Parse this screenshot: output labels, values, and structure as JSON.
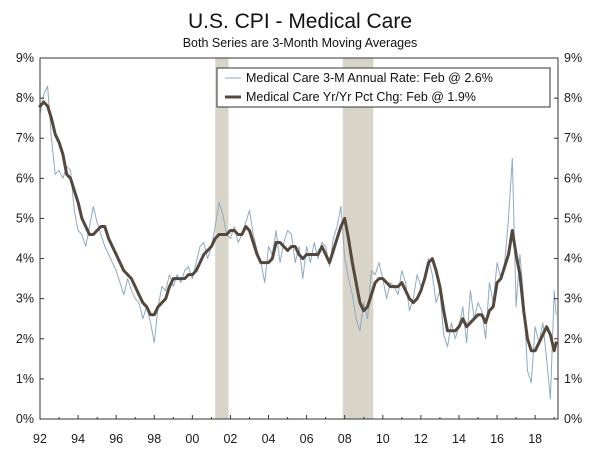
{
  "chart_data": {
    "type": "line",
    "title": "U.S. CPI - Medical Care",
    "subtitle": "Both Series are 3-Month Moving Averages",
    "xlabel": "",
    "ylabel": "",
    "xlim": [
      1992.0,
      2019.2
    ],
    "ylim": [
      0,
      9
    ],
    "x_tick_values": [
      1992,
      1994,
      1996,
      1998,
      2000,
      2002,
      2004,
      2006,
      2008,
      2010,
      2012,
      2014,
      2016,
      2018
    ],
    "x_tick_labels": [
      "92",
      "94",
      "96",
      "98",
      "00",
      "02",
      "04",
      "06",
      "08",
      "10",
      "12",
      "14",
      "16",
      "18"
    ],
    "y_tick_values": [
      0,
      1,
      2,
      3,
      4,
      5,
      6,
      7,
      8,
      9
    ],
    "y_tick_labels": [
      "0%",
      "1%",
      "2%",
      "3%",
      "4%",
      "5%",
      "6%",
      "7%",
      "8%",
      "9%"
    ],
    "recessions": [
      [
        2001.2,
        2001.9
      ],
      [
        2007.9,
        2009.5
      ]
    ],
    "series": [
      {
        "name": "Medical Care 3-M Annual Rate: Feb @ 2.6%",
        "color": "#8fa9c4",
        "width": 1,
        "x": [
          1992.0,
          1992.2,
          1992.4,
          1992.6,
          1992.8,
          1993.0,
          1993.2,
          1993.4,
          1993.6,
          1993.8,
          1994.0,
          1994.2,
          1994.4,
          1994.6,
          1994.8,
          1995.0,
          1995.2,
          1995.4,
          1995.6,
          1995.8,
          1996.0,
          1996.2,
          1996.4,
          1996.6,
          1996.8,
          1997.0,
          1997.2,
          1997.4,
          1997.6,
          1997.8,
          1998.0,
          1998.2,
          1998.4,
          1998.6,
          1998.8,
          1999.0,
          1999.2,
          1999.4,
          1999.6,
          1999.8,
          2000.0,
          2000.2,
          2000.4,
          2000.6,
          2000.8,
          2001.0,
          2001.2,
          2001.4,
          2001.6,
          2001.8,
          2002.0,
          2002.2,
          2002.4,
          2002.6,
          2002.8,
          2003.0,
          2003.2,
          2003.4,
          2003.6,
          2003.8,
          2004.0,
          2004.2,
          2004.4,
          2004.6,
          2004.8,
          2005.0,
          2005.2,
          2005.4,
          2005.6,
          2005.8,
          2006.0,
          2006.2,
          2006.4,
          2006.6,
          2006.8,
          2007.0,
          2007.2,
          2007.4,
          2007.6,
          2007.8,
          2008.0,
          2008.2,
          2008.4,
          2008.6,
          2008.8,
          2009.0,
          2009.2,
          2009.4,
          2009.6,
          2009.8,
          2010.0,
          2010.2,
          2010.4,
          2010.6,
          2010.8,
          2011.0,
          2011.2,
          2011.4,
          2011.6,
          2011.8,
          2012.0,
          2012.2,
          2012.4,
          2012.6,
          2012.8,
          2013.0,
          2013.2,
          2013.4,
          2013.6,
          2013.8,
          2014.0,
          2014.2,
          2014.4,
          2014.6,
          2014.8,
          2015.0,
          2015.2,
          2015.4,
          2015.6,
          2015.8,
          2016.0,
          2016.2,
          2016.4,
          2016.6,
          2016.8,
          2017.0,
          2017.2,
          2017.4,
          2017.6,
          2017.8,
          2018.0,
          2018.2,
          2018.4,
          2018.6,
          2018.8,
          2019.0,
          2019.1
        ],
        "values": [
          7.6,
          8.1,
          8.3,
          7.0,
          6.1,
          6.2,
          6.0,
          6.3,
          6.2,
          5.2,
          4.7,
          4.6,
          4.3,
          4.8,
          5.3,
          4.9,
          4.6,
          4.3,
          4.1,
          3.9,
          3.7,
          3.4,
          3.1,
          3.5,
          3.2,
          3.0,
          2.9,
          2.5,
          2.8,
          2.4,
          1.9,
          2.8,
          3.3,
          3.2,
          3.6,
          3.3,
          3.6,
          3.4,
          3.7,
          3.8,
          3.5,
          3.9,
          4.3,
          4.4,
          4.0,
          4.3,
          4.8,
          5.4,
          5.1,
          4.6,
          4.5,
          4.8,
          4.4,
          4.6,
          4.9,
          5.2,
          4.6,
          4.2,
          3.9,
          3.4,
          4.3,
          4.1,
          4.7,
          3.9,
          4.4,
          4.7,
          4.6,
          3.9,
          4.3,
          3.5,
          4.3,
          3.9,
          4.4,
          4.0,
          4.4,
          4.3,
          3.8,
          4.5,
          4.8,
          5.3,
          4.0,
          3.5,
          3.1,
          2.5,
          2.2,
          2.9,
          2.5,
          3.7,
          3.6,
          3.9,
          3.5,
          3.0,
          3.4,
          3.3,
          3.1,
          3.7,
          3.4,
          2.7,
          3.0,
          3.6,
          3.3,
          3.5,
          4.0,
          3.6,
          2.9,
          3.2,
          2.1,
          1.8,
          2.4,
          2.0,
          2.3,
          2.8,
          1.9,
          3.2,
          2.5,
          2.9,
          2.7,
          2.0,
          3.4,
          2.9,
          3.9,
          3.5,
          3.9,
          5.0,
          6.5,
          2.8,
          4.1,
          3.0,
          1.2,
          0.9,
          2.3,
          1.9,
          2.4,
          1.5,
          0.5,
          3.2,
          2.6
        ]
      },
      {
        "name": "Medical Care Yr/Yr Pct Chg: Feb @ 1.9%",
        "color": "#54483d",
        "width": 3,
        "x": [
          1992.0,
          1992.2,
          1992.4,
          1992.6,
          1992.8,
          1993.0,
          1993.2,
          1993.4,
          1993.6,
          1993.8,
          1994.0,
          1994.2,
          1994.4,
          1994.6,
          1994.8,
          1995.0,
          1995.2,
          1995.4,
          1995.6,
          1995.8,
          1996.0,
          1996.2,
          1996.4,
          1996.6,
          1996.8,
          1997.0,
          1997.2,
          1997.4,
          1997.6,
          1997.8,
          1998.0,
          1998.2,
          1998.4,
          1998.6,
          1998.8,
          1999.0,
          1999.2,
          1999.4,
          1999.6,
          1999.8,
          2000.0,
          2000.2,
          2000.4,
          2000.6,
          2000.8,
          2001.0,
          2001.2,
          2001.4,
          2001.6,
          2001.8,
          2002.0,
          2002.2,
          2002.4,
          2002.6,
          2002.8,
          2003.0,
          2003.2,
          2003.4,
          2003.6,
          2003.8,
          2004.0,
          2004.2,
          2004.4,
          2004.6,
          2004.8,
          2005.0,
          2005.2,
          2005.4,
          2005.6,
          2005.8,
          2006.0,
          2006.2,
          2006.4,
          2006.6,
          2006.8,
          2007.0,
          2007.2,
          2007.4,
          2007.6,
          2007.8,
          2008.0,
          2008.2,
          2008.4,
          2008.6,
          2008.8,
          2009.0,
          2009.2,
          2009.4,
          2009.6,
          2009.8,
          2010.0,
          2010.2,
          2010.4,
          2010.6,
          2010.8,
          2011.0,
          2011.2,
          2011.4,
          2011.6,
          2011.8,
          2012.0,
          2012.2,
          2012.4,
          2012.6,
          2012.8,
          2013.0,
          2013.2,
          2013.4,
          2013.6,
          2013.8,
          2014.0,
          2014.2,
          2014.4,
          2014.6,
          2014.8,
          2015.0,
          2015.2,
          2015.4,
          2015.6,
          2015.8,
          2016.0,
          2016.2,
          2016.4,
          2016.6,
          2016.8,
          2017.0,
          2017.2,
          2017.4,
          2017.6,
          2017.8,
          2018.0,
          2018.2,
          2018.4,
          2018.6,
          2018.8,
          2019.0,
          2019.1
        ],
        "values": [
          7.8,
          7.9,
          7.8,
          7.5,
          7.1,
          6.9,
          6.6,
          6.1,
          6.0,
          5.7,
          5.4,
          5.0,
          4.8,
          4.6,
          4.6,
          4.7,
          4.8,
          4.8,
          4.5,
          4.3,
          4.1,
          3.9,
          3.7,
          3.6,
          3.5,
          3.3,
          3.1,
          2.9,
          2.8,
          2.6,
          2.6,
          2.8,
          2.9,
          3.0,
          3.3,
          3.5,
          3.5,
          3.5,
          3.5,
          3.6,
          3.6,
          3.7,
          3.9,
          4.1,
          4.2,
          4.3,
          4.5,
          4.6,
          4.6,
          4.6,
          4.7,
          4.7,
          4.6,
          4.6,
          4.8,
          4.7,
          4.4,
          4.1,
          3.9,
          3.9,
          3.9,
          4.0,
          4.4,
          4.4,
          4.3,
          4.2,
          4.3,
          4.3,
          4.1,
          4.0,
          4.1,
          4.1,
          4.1,
          4.1,
          4.3,
          4.1,
          3.9,
          4.2,
          4.5,
          4.8,
          5.0,
          4.5,
          3.9,
          3.4,
          2.9,
          2.7,
          2.8,
          3.1,
          3.4,
          3.5,
          3.5,
          3.4,
          3.3,
          3.3,
          3.3,
          3.4,
          3.2,
          3.0,
          2.9,
          3.0,
          3.2,
          3.5,
          3.9,
          4.0,
          3.7,
          3.3,
          2.7,
          2.2,
          2.2,
          2.2,
          2.3,
          2.5,
          2.3,
          2.4,
          2.5,
          2.6,
          2.6,
          2.4,
          2.7,
          2.8,
          3.4,
          3.5,
          3.8,
          4.1,
          4.7,
          4.1,
          3.6,
          2.7,
          2.0,
          1.7,
          1.7,
          1.9,
          2.1,
          2.3,
          2.1,
          1.7,
          1.9
        ]
      }
    ],
    "legend_position": "top-right"
  }
}
